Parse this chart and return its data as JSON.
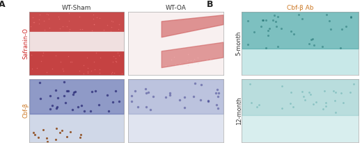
{
  "fig_width": 5.2,
  "fig_height": 2.09,
  "dpi": 100,
  "panel_A_label": "A",
  "panel_B_label": "B",
  "col_labels_A": [
    "WT-Sham",
    "WT-OA"
  ],
  "row_labels_A": [
    "Safranin-O",
    "Cbf-β"
  ],
  "col_label_B": "Cbf-β Ab",
  "row_labels_B": [
    "5-month",
    "12-month"
  ],
  "label_color_row_A_0": "#cc2222",
  "label_color_row_A_1": "#cc7722",
  "label_color_col_B": "#cc7722",
  "label_color_row_B": "#333333",
  "bg_color": "#ffffff",
  "image_colors": {
    "safranin_sham_bg": "#f5e8e8",
    "safranin_sham_tissue": "#c03030",
    "safranin_oa_bg": "#f8f0f0",
    "safranin_oa_tissue": "#d06060",
    "cbfb_sham_bg": "#d0d8e8",
    "cbfb_sham_tissue": "#4050a0",
    "cbfb_oa_bg": "#e0e4f0",
    "cbfb_oa_tissue": "#6070b0",
    "cbfb_5mo_bg": "#c8e8e8",
    "cbfb_5mo_tissue": "#40a0a0",
    "cbfb_12mo_bg": "#d8eeee",
    "cbfb_12mo_tissue": "#80c0c0"
  }
}
